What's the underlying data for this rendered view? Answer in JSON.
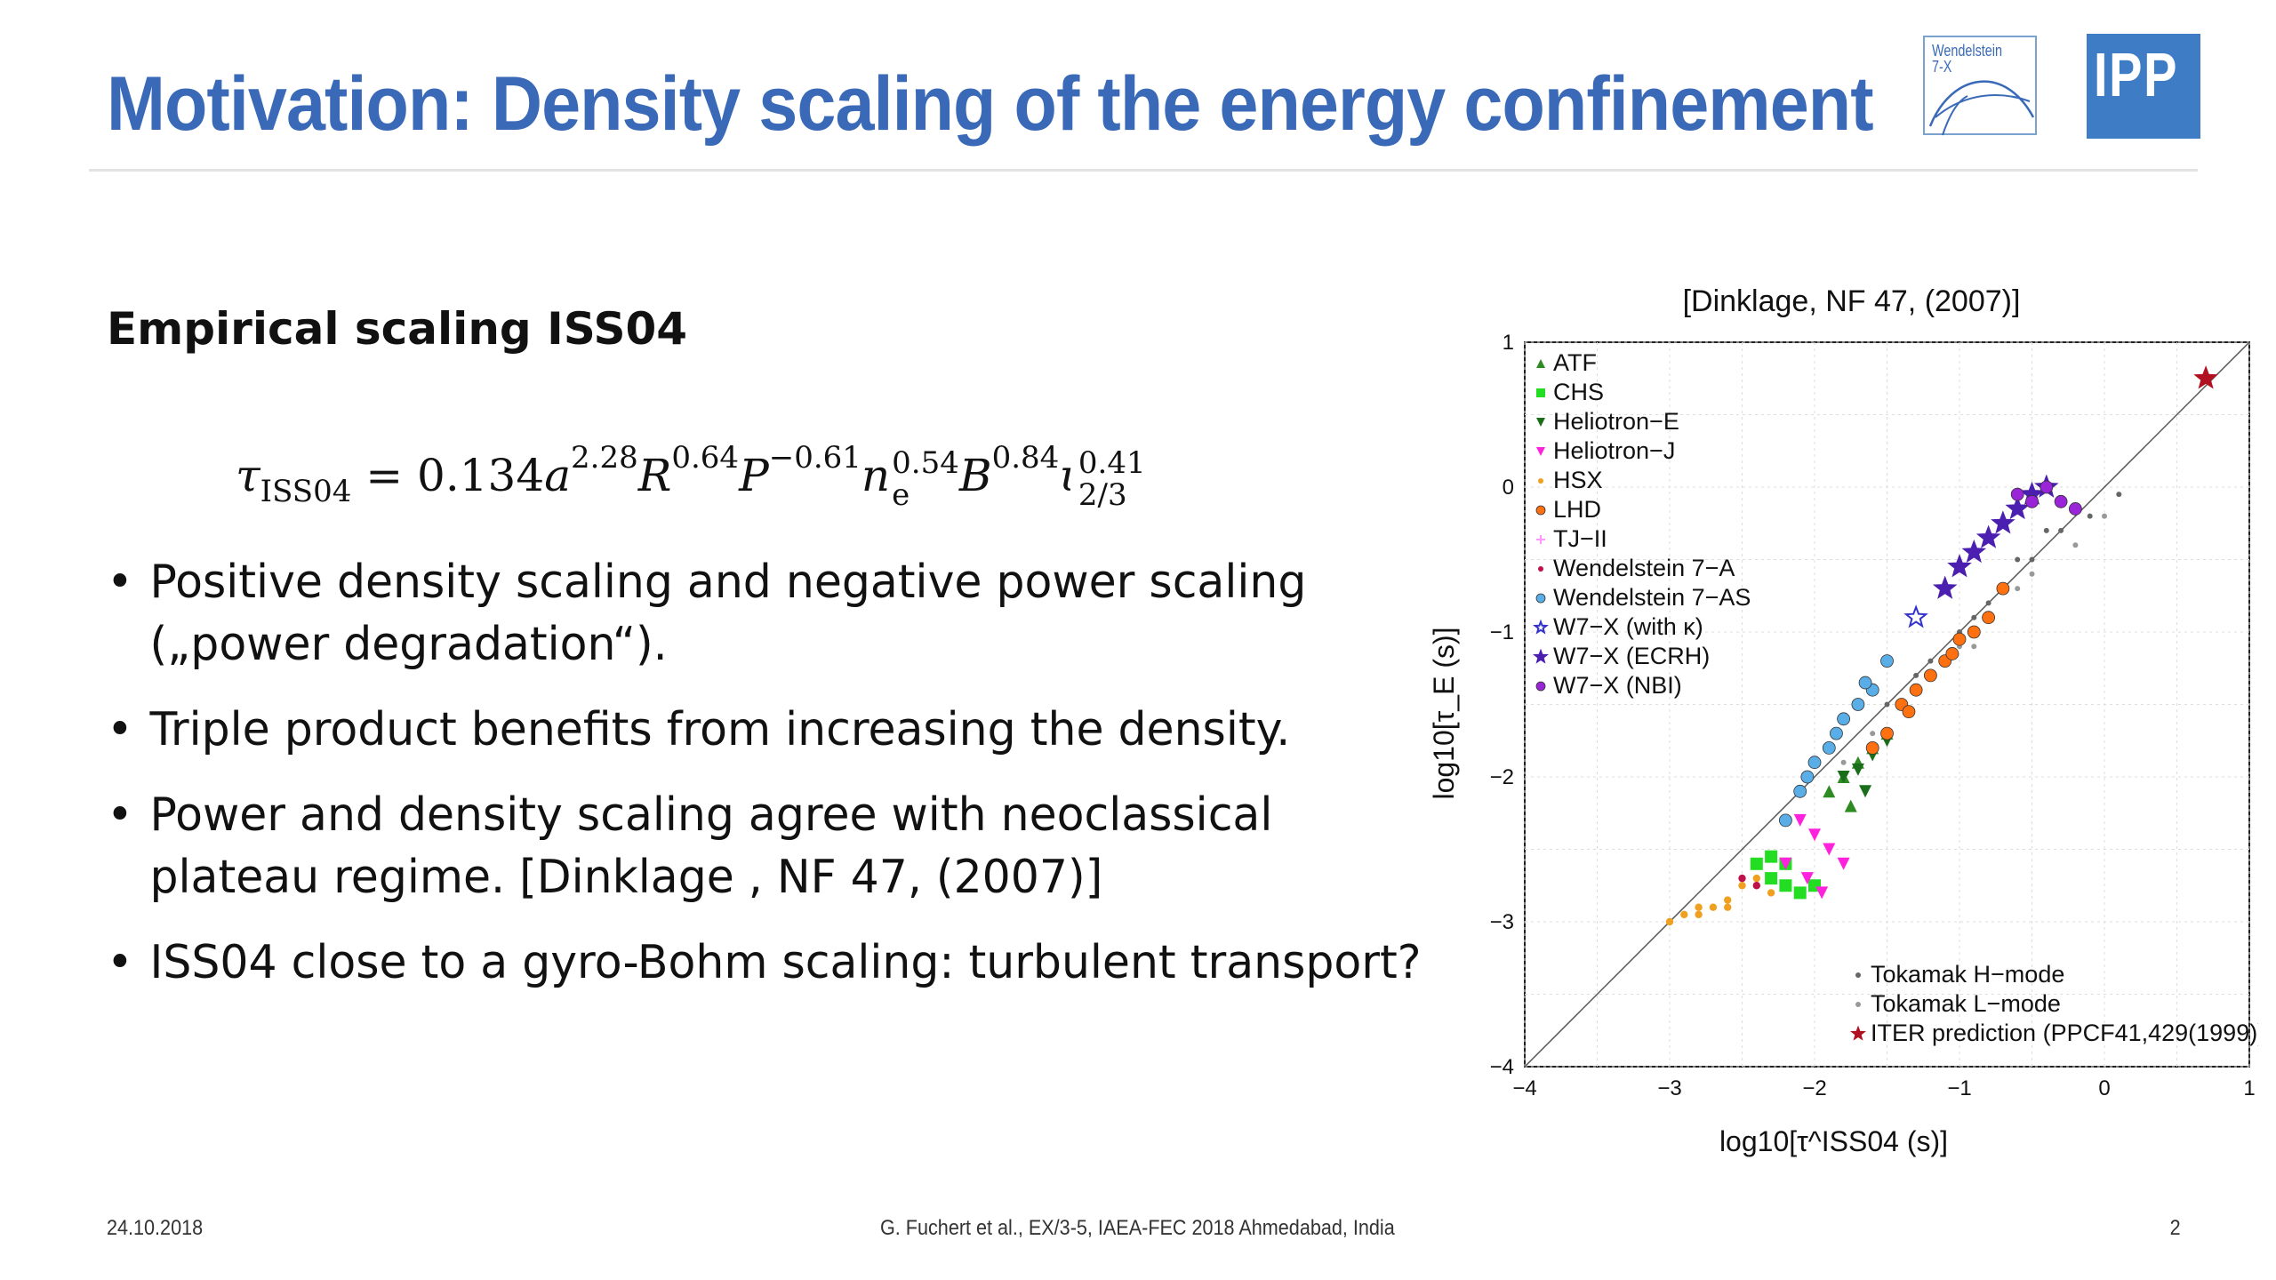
{
  "slide": {
    "title": "Motivation: Density scaling of the energy confinement",
    "subheading": "Empirical scaling ISS04",
    "formula": {
      "lhs_symbol": "τ",
      "lhs_sub": "ISS04",
      "eq": " = 0.134",
      "a_exp": "2.28",
      "R_exp": "0.64",
      "P_exp": "−0.61",
      "n_exp": "0.54",
      "n_sub": "e",
      "B_exp": "0.84",
      "iota_exp": "0.41",
      "iota_sub": "2/3"
    },
    "bullets": [
      "Positive density scaling and negative power scaling („power degradation“).",
      "Triple product benefits from increasing the density.",
      "Power and density scaling agree with neoclassical plateau regime. [Dinklage , NF 47, (2007)]",
      "ISS04 close to a gyro-Bohm scaling: turbulent transport?"
    ]
  },
  "logos": {
    "w7x_text": "Wendelstein\n7-X",
    "ipp_text": "IPP"
  },
  "footer": {
    "date": "24.10.2018",
    "citation": "G. Fuchert et al., EX/3-5, IAEA-FEC 2018 Ahmedabad, India",
    "page": "2"
  },
  "chart_data": {
    "type": "scatter",
    "title": "[Dinklage, NF 47, (2007)]",
    "xlabel": "log10[τ^ISS04 (s)]",
    "ylabel": "log10[τ_E (s)]",
    "xlim": [
      -4,
      1
    ],
    "ylim": [
      -4,
      1
    ],
    "xticks": [
      "−4",
      "−3",
      "−2",
      "−1",
      "0",
      "1"
    ],
    "yticks": [
      "1",
      "0",
      "−1",
      "−2",
      "−3",
      "−4"
    ],
    "grid": true,
    "diagonal_line": true,
    "legend_top": [
      {
        "name": "ATF",
        "color": "#2e8b22",
        "marker": "triangle-up"
      },
      {
        "name": "CHS",
        "color": "#22dd22",
        "marker": "square"
      },
      {
        "name": "Heliotron−E",
        "color": "#1a6e1a",
        "marker": "triangle-down"
      },
      {
        "name": "Heliotron−J",
        "color": "#ff22dd",
        "marker": "triangle-down"
      },
      {
        "name": "HSX",
        "color": "#f0a020",
        "marker": "dot"
      },
      {
        "name": "LHD",
        "color": "#ff7010",
        "marker": "circle"
      },
      {
        "name": "TJ−II",
        "color": "#ff99ff",
        "marker": "plus"
      },
      {
        "name": "Wendelstein 7−A",
        "color": "#c0104a",
        "marker": "dot"
      },
      {
        "name": "Wendelstein 7−AS",
        "color": "#5aaee8",
        "marker": "circle"
      },
      {
        "name": "W7−X (with κ)",
        "color": "#3333cc",
        "marker": "star-open"
      },
      {
        "name": "W7−X (ECRH)",
        "color": "#4b1fb0",
        "marker": "star"
      },
      {
        "name": "W7−X (NBI)",
        "color": "#9a24d8",
        "marker": "circle"
      }
    ],
    "legend_bottom": [
      {
        "name": "Tokamak H−mode",
        "color": "#666666",
        "marker": "dot"
      },
      {
        "name": "Tokamak L−mode",
        "color": "#999999",
        "marker": "dot"
      },
      {
        "name": "ITER prediction (PPCF41,429(1999))",
        "color": "#b01020",
        "marker": "star"
      }
    ],
    "legend_placement": "top-left and bottom-right",
    "series": [
      {
        "name": "Tokamak H−mode",
        "color": "#666666",
        "x": [
          -1.5,
          -1.2,
          -0.9,
          -0.7,
          -0.5,
          -0.3,
          -0.1,
          0.1,
          -0.6,
          -0.4,
          -1.0,
          -0.8,
          -1.3
        ],
        "y": [
          -1.5,
          -1.2,
          -0.9,
          -0.7,
          -0.5,
          -0.3,
          -0.2,
          -0.05,
          -0.5,
          -0.3,
          -1.0,
          -0.8,
          -1.3
        ]
      },
      {
        "name": "Tokamak L−mode",
        "color": "#999999",
        "x": [
          -1.8,
          -1.4,
          -1.0,
          -0.6,
          -0.2,
          0.0,
          -0.9,
          -0.5,
          -1.6,
          -1.2
        ],
        "y": [
          -1.9,
          -1.5,
          -1.1,
          -0.7,
          -0.4,
          -0.2,
          -1.1,
          -0.6,
          -1.7,
          -1.3
        ]
      },
      {
        "name": "HSX",
        "color": "#f0a020",
        "x": [
          -3.0,
          -2.9,
          -2.8,
          -2.7,
          -2.6,
          -2.5,
          -2.4,
          -2.8,
          -2.6,
          -2.3
        ],
        "y": [
          -3.0,
          -2.95,
          -2.9,
          -2.9,
          -2.85,
          -2.75,
          -2.7,
          -2.95,
          -2.9,
          -2.8
        ]
      },
      {
        "name": "CHS",
        "color": "#22dd22",
        "x": [
          -2.4,
          -2.3,
          -2.2,
          -2.1,
          -2.0,
          -2.3,
          -2.2
        ],
        "y": [
          -2.6,
          -2.7,
          -2.75,
          -2.8,
          -2.75,
          -2.55,
          -2.6
        ]
      },
      {
        "name": "Heliotron−J",
        "color": "#ff22dd",
        "x": [
          -2.1,
          -2.0,
          -1.9,
          -1.8,
          -2.2,
          -2.05,
          -1.95
        ],
        "y": [
          -2.3,
          -2.4,
          -2.5,
          -2.6,
          -2.6,
          -2.7,
          -2.8
        ]
      },
      {
        "name": "ATF",
        "color": "#2e8b22",
        "x": [
          -1.9,
          -1.8,
          -1.7,
          -1.6,
          -1.5,
          -1.75
        ],
        "y": [
          -2.1,
          -2.0,
          -1.9,
          -1.8,
          -1.7,
          -2.2
        ]
      },
      {
        "name": "Heliotron−E",
        "color": "#1a6e1a",
        "x": [
          -1.8,
          -1.7,
          -1.6,
          -1.5,
          -1.65
        ],
        "y": [
          -2.0,
          -1.95,
          -1.85,
          -1.75,
          -2.1
        ]
      },
      {
        "name": "Wendelstein 7−AS",
        "color": "#5aaee8",
        "x": [
          -2.2,
          -2.1,
          -2.0,
          -1.9,
          -1.8,
          -1.7,
          -1.6,
          -1.5,
          -2.05,
          -1.85,
          -1.65
        ],
        "y": [
          -2.3,
          -2.1,
          -1.9,
          -1.8,
          -1.6,
          -1.5,
          -1.4,
          -1.2,
          -2.0,
          -1.7,
          -1.35
        ]
      },
      {
        "name": "Wendelstein 7−A",
        "color": "#c0104a",
        "x": [
          -2.5,
          -2.4
        ],
        "y": [
          -2.7,
          -2.75
        ]
      },
      {
        "name": "LHD",
        "color": "#ff7010",
        "x": [
          -1.6,
          -1.5,
          -1.4,
          -1.3,
          -1.2,
          -1.1,
          -1.0,
          -0.9,
          -0.8,
          -0.7,
          -1.35,
          -1.05
        ],
        "y": [
          -1.8,
          -1.7,
          -1.5,
          -1.4,
          -1.3,
          -1.2,
          -1.05,
          -1.0,
          -0.9,
          -0.7,
          -1.55,
          -1.15
        ]
      },
      {
        "name": "W7−X (ECRH)",
        "color": "#4b1fb0",
        "x": [
          -1.1,
          -1.0,
          -0.9,
          -0.8,
          -0.7,
          -0.6,
          -0.5,
          -0.4
        ],
        "y": [
          -0.7,
          -0.55,
          -0.45,
          -0.35,
          -0.25,
          -0.15,
          -0.05,
          0.0
        ]
      },
      {
        "name": "W7−X (NBI)",
        "color": "#9a24d8",
        "x": [
          -0.6,
          -0.5,
          -0.4,
          -0.3,
          -0.2
        ],
        "y": [
          -0.05,
          -0.1,
          0.0,
          -0.1,
          -0.15
        ]
      },
      {
        "name": "W7−X (with κ)",
        "color": "#3333cc",
        "x": [
          -1.3
        ],
        "y": [
          -0.9
        ]
      },
      {
        "name": "ITER prediction (PPCF41,429(1999))",
        "color": "#b01020",
        "x": [
          0.7
        ],
        "y": [
          0.75
        ]
      }
    ]
  }
}
